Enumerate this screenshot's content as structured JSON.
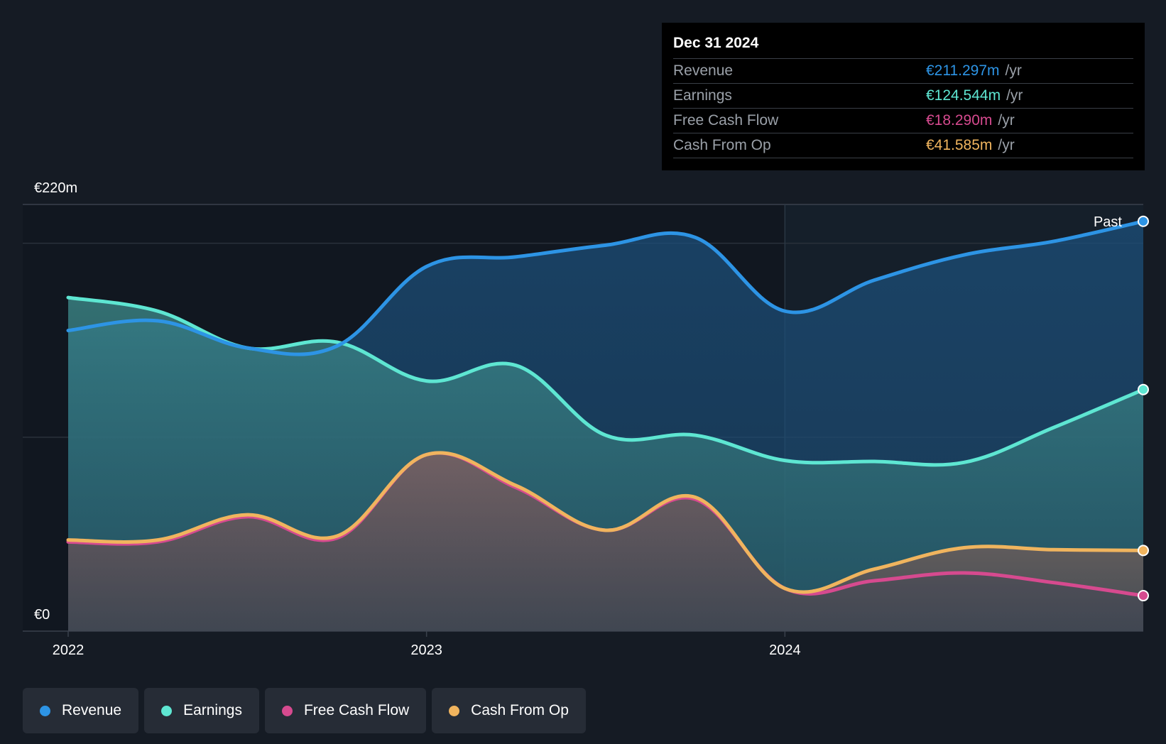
{
  "chart_data": {
    "type": "area",
    "x": [
      2022.0,
      2022.25,
      2022.5,
      2022.75,
      2023.0,
      2023.25,
      2023.5,
      2023.75,
      2024.0,
      2024.25,
      2024.5,
      2024.75,
      2025.0
    ],
    "x_ticks": [
      {
        "value": 2022,
        "label": "2022"
      },
      {
        "value": 2023,
        "label": "2023"
      },
      {
        "value": 2024,
        "label": "2024"
      }
    ],
    "y_range": [
      0,
      220
    ],
    "y_top_label": "€220m",
    "y_bottom_label": "€0",
    "past_label": "Past",
    "past_region_start": 2024,
    "series": [
      {
        "name": "Revenue",
        "color": "#2d94e5",
        "values": [
          155,
          160,
          146,
          147,
          188,
          193,
          199,
          203,
          165,
          181,
          194,
          201,
          211.297
        ]
      },
      {
        "name": "Earnings",
        "color": "#5ee6d2",
        "values": [
          172,
          165,
          146,
          149,
          129,
          137,
          101,
          101,
          88,
          87.5,
          87,
          105,
          124.544
        ]
      },
      {
        "name": "Free Cash Flow",
        "color": "#d64a8f",
        "values": [
          46,
          46,
          59,
          48,
          91,
          74,
          52,
          68,
          22,
          26,
          30,
          25,
          18.29
        ]
      },
      {
        "name": "Cash From Op",
        "color": "#f0b45e",
        "values": [
          47,
          47,
          60,
          49,
          91,
          75,
          52,
          69,
          22,
          32,
          43,
          42,
          41.585
        ]
      }
    ]
  },
  "tooltip": {
    "date": "Dec 31 2024",
    "rows": [
      {
        "label": "Revenue",
        "value": "€211.297m",
        "unit": "/yr",
        "color": "#2d94e5"
      },
      {
        "label": "Earnings",
        "value": "€124.544m",
        "unit": "/yr",
        "color": "#5ee6d2"
      },
      {
        "label": "Free Cash Flow",
        "value": "€18.290m",
        "unit": "/yr",
        "color": "#d64a8f"
      },
      {
        "label": "Cash From Op",
        "value": "€41.585m",
        "unit": "/yr",
        "color": "#f0b45e"
      }
    ]
  },
  "legend": [
    {
      "label": "Revenue",
      "color": "#2d94e5"
    },
    {
      "label": "Earnings",
      "color": "#5ee6d2"
    },
    {
      "label": "Free Cash Flow",
      "color": "#d64a8f"
    },
    {
      "label": "Cash From Op",
      "color": "#f0b45e"
    }
  ]
}
